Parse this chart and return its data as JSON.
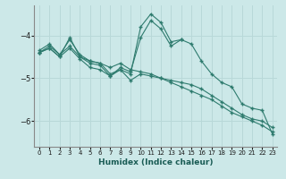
{
  "xlabel": "Humidex (Indice chaleur)",
  "ylabel": "",
  "xlim": [
    -0.5,
    23.5
  ],
  "ylim": [
    -6.6,
    -3.3
  ],
  "yticks": [
    -6,
    -5,
    -4
  ],
  "xticks": [
    0,
    1,
    2,
    3,
    4,
    5,
    6,
    7,
    8,
    9,
    10,
    11,
    12,
    13,
    14,
    15,
    16,
    17,
    18,
    19,
    20,
    21,
    22,
    23
  ],
  "bg_color": "#cce8e8",
  "line_color": "#2e7b6e",
  "grid_color": "#b8d8d8",
  "series": [
    {
      "x": [
        0,
        1,
        2,
        3,
        4,
        5,
        6,
        7,
        8,
        9,
        10,
        11,
        12,
        13,
        14,
        15,
        16,
        17,
        18,
        19,
        20,
        21,
        22,
        23
      ],
      "y": [
        -4.35,
        -4.2,
        -4.45,
        -4.25,
        -4.5,
        -4.6,
        -4.65,
        -4.75,
        -4.65,
        -4.8,
        -4.85,
        -4.9,
        -5.0,
        -5.1,
        -5.2,
        -5.3,
        -5.4,
        -5.5,
        -5.65,
        -5.8,
        -5.9,
        -6.0,
        -6.1,
        -6.25
      ]
    },
    {
      "x": [
        0,
        1,
        2,
        3,
        4,
        5,
        6,
        7,
        8,
        9,
        10,
        11,
        12,
        13,
        14,
        15,
        16,
        17,
        18,
        19,
        20,
        21,
        22,
        23
      ],
      "y": [
        -4.4,
        -4.25,
        -4.45,
        -4.1,
        -4.45,
        -4.6,
        -4.65,
        -4.9,
        -4.8,
        -4.9,
        -3.8,
        -3.5,
        -3.7,
        -4.15,
        -4.1,
        -4.2,
        -4.6,
        -4.9,
        -5.1,
        -5.2,
        -5.6,
        -5.7,
        -5.75,
        -6.3
      ]
    },
    {
      "x": [
        0,
        1,
        2,
        3,
        4,
        5,
        6,
        7,
        8,
        9,
        10,
        11,
        12,
        13,
        14
      ],
      "y": [
        -4.4,
        -4.3,
        -4.5,
        -4.05,
        -4.5,
        -4.65,
        -4.7,
        -4.95,
        -4.75,
        -4.85,
        -4.05,
        -3.65,
        -3.85,
        -4.25,
        -4.1
      ]
    },
    {
      "x": [
        0,
        1,
        2,
        3,
        4,
        5,
        6,
        7,
        8,
        9,
        10,
        11,
        12,
        13,
        14,
        15,
        16,
        17,
        18,
        19,
        20,
        21,
        22,
        23
      ],
      "y": [
        -4.4,
        -4.3,
        -4.5,
        -4.3,
        -4.55,
        -4.75,
        -4.8,
        -4.95,
        -4.8,
        -5.05,
        -4.9,
        -4.95,
        -5.0,
        -5.05,
        -5.1,
        -5.15,
        -5.25,
        -5.4,
        -5.55,
        -5.7,
        -5.85,
        -5.95,
        -6.0,
        -6.15
      ]
    }
  ]
}
